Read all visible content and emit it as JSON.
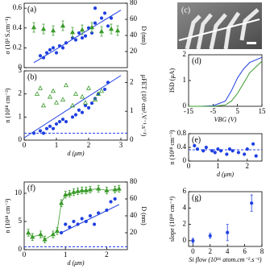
{
  "chart_data": [
    {
      "type": "scatter",
      "label": "(a)",
      "ylabel": "σ (10³ S.cm⁻¹)",
      "y2label": "D (nm)",
      "xlim": [
        0,
        3.2
      ],
      "ylim": [
        0,
        0.65
      ],
      "yticks": [
        0,
        0.2,
        0.4,
        0.6
      ],
      "y2lim": [
        0,
        80
      ],
      "y2ticks": [
        20,
        40,
        60,
        80
      ],
      "series": [
        {
          "marker": "circle",
          "color": "#2040e0",
          "x": [
            0.5,
            0.6,
            0.7,
            0.8,
            0.9,
            1.0,
            1.1,
            1.2,
            1.3,
            1.5,
            1.6,
            1.7,
            1.8,
            1.9,
            2.0,
            2.1,
            2.2,
            2.2,
            2.4,
            2.5,
            2.6,
            2.7
          ],
          "values": [
            0.12,
            0.1,
            0.15,
            0.18,
            0.2,
            0.15,
            0.22,
            0.2,
            0.25,
            0.3,
            0.28,
            0.35,
            0.3,
            0.32,
            0.4,
            0.35,
            0.6,
            0.45,
            0.5,
            0.55,
            0.42,
            0.5
          ]
        },
        {
          "marker": "none",
          "color": "#2040e0",
          "x": [
            0.3,
            3.0
          ],
          "values": [
            0.05,
            0.58
          ]
        },
        {
          "marker": "triangle",
          "color": "#3a9a2a",
          "axis": "y2",
          "x": [
            0.3,
            0.6,
            0.9,
            1.2,
            1.5,
            1.8,
            2.1,
            2.4,
            2.7,
            2.9
          ],
          "values": [
            50,
            48,
            46,
            52,
            44,
            47,
            50,
            45,
            48,
            46
          ],
          "errors": [
            6,
            6,
            6,
            6,
            6,
            6,
            6,
            6,
            6,
            6
          ]
        }
      ]
    },
    {
      "type": "scatter",
      "label": "(b)",
      "ylabel": "n (10¹⁸ cm⁻³)",
      "y2label": "μFET (10³ cm².V⁻¹.s⁻¹)",
      "xlabel": "d (μm)",
      "xlim": [
        0,
        3.2
      ],
      "xticks": [
        0,
        1,
        2,
        3
      ],
      "ylim": [
        0,
        3
      ],
      "yticks": [
        0,
        1,
        2,
        3
      ],
      "y2lim": [
        0,
        2.4
      ],
      "y2ticks": [
        0,
        1,
        2
      ],
      "series": [
        {
          "marker": "circle",
          "color": "#2040e0",
          "x": [
            0.3,
            0.5,
            0.6,
            0.7,
            0.8,
            0.9,
            1.0,
            1.1,
            1.2,
            1.3,
            1.5,
            1.6,
            1.7,
            1.8,
            1.9,
            2.0,
            2.1,
            2.2,
            2.3,
            2.5,
            2.6
          ],
          "values": [
            0.3,
            0.4,
            0.3,
            0.5,
            0.6,
            0.5,
            0.7,
            0.8,
            0.9,
            0.8,
            1.0,
            1.1,
            1.3,
            1.2,
            1.5,
            1.4,
            1.6,
            1.8,
            2.0,
            2.2,
            2.5
          ]
        },
        {
          "marker": "none",
          "color": "#2040e0",
          "x": [
            0,
            3
          ],
          "values": [
            0.1,
            2.8
          ]
        },
        {
          "marker": "none",
          "dash": true,
          "color": "#2040e0",
          "x": [
            0,
            3.2
          ],
          "values": [
            0.3,
            0.3
          ]
        },
        {
          "marker": "triangle-open",
          "color": "#3a9a2a",
          "axis": "y2",
          "x": [
            0.4,
            0.5,
            0.6,
            0.8,
            0.9,
            1.0,
            1.2,
            1.3,
            1.5,
            1.6,
            1.8,
            1.9,
            2.0,
            2.2,
            2.3,
            2.4
          ],
          "values": [
            1.6,
            1.8,
            1.2,
            1.5,
            1.7,
            1.3,
            1.4,
            1.9,
            1.2,
            1.6,
            1.5,
            1.3,
            1.8,
            1.4,
            1.6,
            1.7
          ]
        }
      ]
    },
    {
      "type": "image",
      "label": "(c)"
    },
    {
      "type": "scatter",
      "label": "(d)",
      "ylabel": "ISD (μA)",
      "xlabel": "VBG (V)",
      "xlim": [
        -15,
        15
      ],
      "xticks": [
        -15,
        -5,
        5,
        15
      ],
      "ylim": [
        0,
        2
      ],
      "yticks": [
        0,
        1,
        2
      ],
      "series": [
        {
          "marker": "none",
          "color": "#2040e0",
          "x": [
            -15,
            -10,
            -5,
            0,
            2.5,
            5,
            7.5,
            10,
            15
          ],
          "values": [
            0,
            0,
            0.02,
            0.2,
            0.6,
            1.1,
            1.45,
            1.7,
            1.9
          ]
        },
        {
          "marker": "none",
          "color": "#3a9a2a",
          "x": [
            -15,
            -10,
            -5,
            0,
            2.5,
            5,
            7.5,
            10,
            15
          ],
          "values": [
            0,
            0,
            0,
            0.05,
            0.2,
            0.5,
            0.9,
            1.3,
            1.75
          ]
        }
      ]
    },
    {
      "type": "scatter",
      "label": "(e)",
      "ylabel": "n (10¹⁸ cm⁻³)",
      "xlabel": "d (μm)",
      "xlim": [
        0,
        2.5
      ],
      "xticks": [
        0,
        1,
        2
      ],
      "ylim": [
        0,
        0.8
      ],
      "yticks": [
        0,
        0.4,
        0.8
      ],
      "series": [
        {
          "marker": "circle",
          "color": "#2040e0",
          "x": [
            0.2,
            0.3,
            0.5,
            0.6,
            0.8,
            0.9,
            1.0,
            1.1,
            1.3,
            1.4,
            1.5,
            1.7,
            1.9,
            2.0,
            2.2,
            2.3
          ],
          "values": [
            0.45,
            0.35,
            0.3,
            0.4,
            0.3,
            0.25,
            0.35,
            0.3,
            0.2,
            0.35,
            0.3,
            0.25,
            0.2,
            0.35,
            0.5,
            0.15
          ]
        },
        {
          "marker": "none",
          "dash": true,
          "color": "#2040e0",
          "x": [
            0,
            2.5
          ],
          "values": [
            0.33,
            0.33
          ]
        }
      ]
    },
    {
      "type": "scatter",
      "label": "(f)",
      "ylabel": "n (10¹⁸ cm⁻³)",
      "y2label": "D (nm)",
      "xlabel": "d (μm)",
      "xlim": [
        0,
        2.5
      ],
      "xticks": [
        0,
        1,
        2
      ],
      "ylim": [
        0,
        12
      ],
      "yticks": [
        0,
        5,
        10
      ],
      "y2lim": [
        0,
        80
      ],
      "y2ticks": [
        20,
        40,
        60,
        80
      ],
      "series": [
        {
          "marker": "circle",
          "color": "#2040e0",
          "x": [
            0.9,
            1.0,
            1.1,
            1.2,
            1.3,
            1.4,
            1.5,
            1.6,
            1.7,
            1.8,
            2.0,
            2.1,
            2.2
          ],
          "values": [
            3,
            4.5,
            4,
            5,
            4.5,
            5.5,
            5,
            6,
            4.5,
            6.5,
            7,
            8.5,
            9
          ]
        },
        {
          "marker": "none",
          "color": "#2040e0",
          "x": [
            0.9,
            2.3
          ],
          "values": [
            3,
            8
          ]
        },
        {
          "marker": "none",
          "dash": true,
          "color": "#2040e0",
          "x": [
            0,
            2.5
          ],
          "values": [
            0.5,
            0.5
          ]
        },
        {
          "marker": "triangle",
          "color": "#3a9a2a",
          "axis": "y2",
          "line": true,
          "x": [
            0.1,
            0.2,
            0.4,
            0.5,
            0.7,
            0.8,
            0.9,
            1.0,
            1.1,
            1.2,
            1.3,
            1.4,
            1.5,
            1.6,
            1.8,
            2.0,
            2.2,
            2.3
          ],
          "values": [
            20,
            15,
            18,
            12,
            18,
            22,
            55,
            65,
            66,
            68,
            69,
            70,
            70,
            71,
            72,
            70,
            71,
            72
          ],
          "errors": [
            4,
            4,
            4,
            4,
            4,
            4,
            4,
            4,
            4,
            4,
            4,
            4,
            4,
            4,
            4,
            4,
            4,
            4
          ]
        }
      ]
    },
    {
      "type": "scatter",
      "label": "(g)",
      "ylabel": "slope (10¹⁸ cm⁻⁴)",
      "xlabel": "Si flow (10¹⁶ atom.cm⁻².s⁻¹)",
      "xlim": [
        -0.5,
        8
      ],
      "xticks": [
        0,
        2,
        4,
        6,
        8
      ],
      "ylim": [
        -0.7,
        6
      ],
      "yticks": [
        0,
        2,
        4,
        6
      ],
      "series": [
        {
          "marker": "circle",
          "color": "#2040e0",
          "x": [
            0,
            2,
            4,
            6.8
          ],
          "values": [
            0,
            0.6,
            1.0,
            4.6
          ],
          "errors": [
            0.3,
            0.3,
            1.0,
            1.0
          ]
        }
      ]
    }
  ]
}
